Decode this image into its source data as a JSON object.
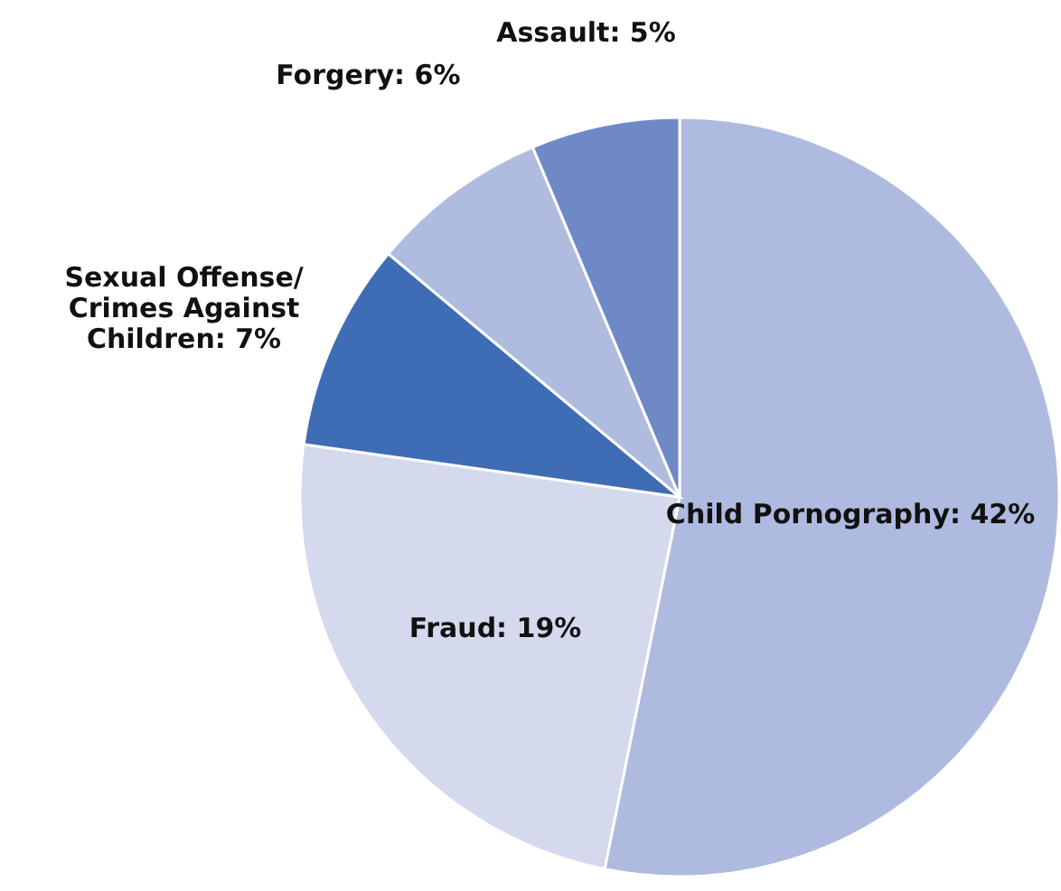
{
  "chart_data": {
    "type": "pie",
    "categories": [
      "Child Pornography",
      "Fraud",
      "Sexual Offense/\nCrimes Against\nChildren",
      "Forgery",
      "Assault"
    ],
    "values": [
      42,
      19,
      7,
      6,
      5
    ],
    "value_labels": [
      "42%",
      "19%",
      "7%",
      "6%",
      "5%"
    ],
    "colors": [
      "#aebadf",
      "#d5d9ee",
      "#3f6db5",
      "#b0bbe0",
      "#6f89c6"
    ]
  }
}
